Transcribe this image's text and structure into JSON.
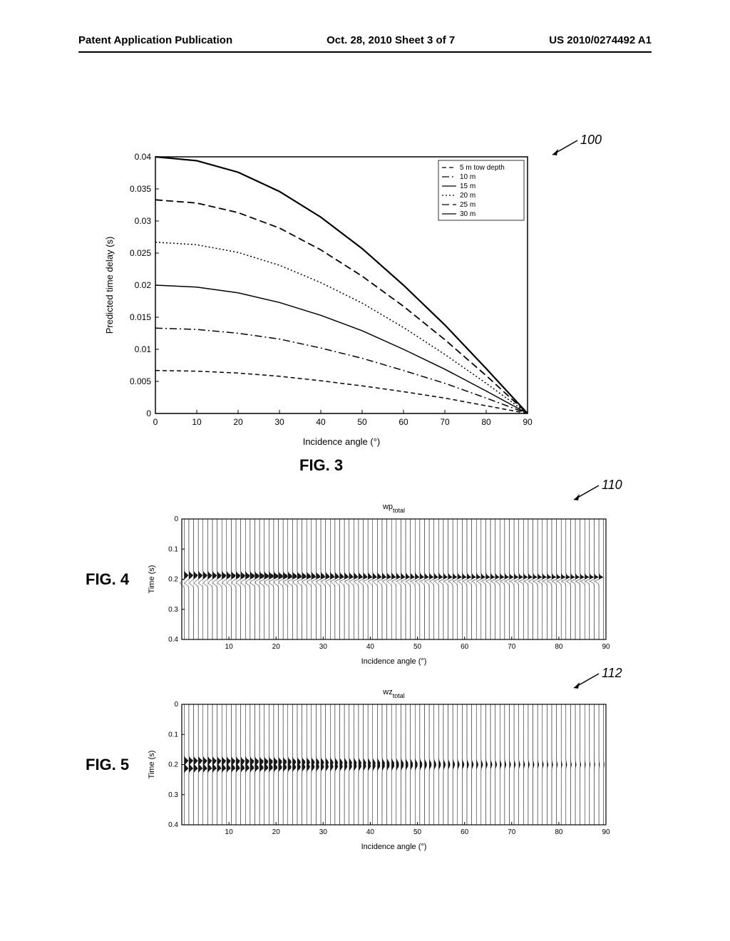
{
  "header": {
    "left": "Patent Application Publication",
    "center": "Oct. 28, 2010  Sheet 3 of 7",
    "right": "US 2010/0274492 A1"
  },
  "fig3": {
    "type": "line",
    "label": "FIG. 3",
    "callout": "100",
    "xlabel": "Incidence angle (°)",
    "ylabel": "Predicted time delay (s)",
    "xlim": [
      0,
      90
    ],
    "ylim": [
      0,
      0.04
    ],
    "xticks": [
      0,
      10,
      20,
      30,
      40,
      50,
      60,
      70,
      80,
      90
    ],
    "yticks": [
      0,
      0.005,
      0.01,
      0.015,
      0.02,
      0.025,
      0.03,
      0.035,
      0.04
    ],
    "legend": [
      {
        "label": "5 m tow depth",
        "dash": "6,4"
      },
      {
        "label": "10 m",
        "dash": "10,4,2,4"
      },
      {
        "label": "15 m",
        "dash": ""
      },
      {
        "label": "20 m",
        "dash": "2,3"
      },
      {
        "label": "25 m",
        "dash": "10,5"
      },
      {
        "label": "30 m",
        "dash": ""
      }
    ],
    "series": [
      {
        "name": "5m",
        "dash": "6,4",
        "width": 1.5,
        "pts": [
          [
            0,
            0.0067
          ],
          [
            10,
            0.0066
          ],
          [
            20,
            0.0063
          ],
          [
            30,
            0.0058
          ],
          [
            40,
            0.0051
          ],
          [
            50,
            0.0043
          ],
          [
            60,
            0.0034
          ],
          [
            70,
            0.0024
          ],
          [
            80,
            0.0012
          ],
          [
            90,
            0
          ]
        ]
      },
      {
        "name": "10m",
        "dash": "10,4,2,4",
        "width": 1.5,
        "pts": [
          [
            0,
            0.0133
          ],
          [
            10,
            0.0131
          ],
          [
            20,
            0.0125
          ],
          [
            30,
            0.0116
          ],
          [
            40,
            0.0102
          ],
          [
            50,
            0.0086
          ],
          [
            60,
            0.0067
          ],
          [
            70,
            0.0047
          ],
          [
            80,
            0.0024
          ],
          [
            90,
            0
          ]
        ]
      },
      {
        "name": "15m",
        "dash": "",
        "width": 1.5,
        "pts": [
          [
            0,
            0.02
          ],
          [
            10,
            0.0197
          ],
          [
            20,
            0.0188
          ],
          [
            30,
            0.0173
          ],
          [
            40,
            0.0153
          ],
          [
            50,
            0.0129
          ],
          [
            60,
            0.01
          ],
          [
            70,
            0.0069
          ],
          [
            80,
            0.0035
          ],
          [
            90,
            0
          ]
        ]
      },
      {
        "name": "20m",
        "dash": "2,3",
        "width": 1.5,
        "pts": [
          [
            0,
            0.0267
          ],
          [
            10,
            0.0263
          ],
          [
            20,
            0.0251
          ],
          [
            30,
            0.0231
          ],
          [
            40,
            0.0204
          ],
          [
            50,
            0.0172
          ],
          [
            60,
            0.0134
          ],
          [
            70,
            0.0092
          ],
          [
            80,
            0.0047
          ],
          [
            90,
            0
          ]
        ]
      },
      {
        "name": "25m",
        "dash": "10,5",
        "width": 1.8,
        "pts": [
          [
            0,
            0.0333
          ],
          [
            10,
            0.0328
          ],
          [
            20,
            0.0313
          ],
          [
            30,
            0.0289
          ],
          [
            40,
            0.0255
          ],
          [
            50,
            0.0214
          ],
          [
            60,
            0.0167
          ],
          [
            70,
            0.0115
          ],
          [
            80,
            0.0059
          ],
          [
            90,
            0
          ]
        ]
      },
      {
        "name": "30m",
        "dash": "",
        "width": 2.2,
        "pts": [
          [
            0,
            0.04
          ],
          [
            10,
            0.0394
          ],
          [
            20,
            0.0376
          ],
          [
            30,
            0.0346
          ],
          [
            40,
            0.0306
          ],
          [
            50,
            0.0257
          ],
          [
            60,
            0.02
          ],
          [
            70,
            0.0138
          ],
          [
            80,
            0.007
          ],
          [
            90,
            0
          ]
        ]
      }
    ],
    "plot_bg": "#ffffff",
    "axis_color": "#000000",
    "line_color": "#000000",
    "tick_fontsize": 12,
    "label_fontsize": 13,
    "legend_fontsize": 10
  },
  "fig4": {
    "type": "seismic-wiggle",
    "label": "FIG. 4",
    "callout": "110",
    "title": "wp_total",
    "xlabel": "Incidence angle (°)",
    "ylabel": "Time (s)",
    "xlim": [
      0,
      90
    ],
    "ylim": [
      0,
      0.4
    ],
    "xticks": [
      10,
      20,
      30,
      40,
      50,
      60,
      70,
      80,
      90
    ],
    "yticks": [
      0,
      0.1,
      0.2,
      0.3,
      0.4
    ],
    "event_time": 0.2,
    "ghost_offset_start": 0.025,
    "ghost_offset_end": 0.0,
    "trace_spacing": 1,
    "trace_count": 90,
    "tick_fontsize": 10,
    "label_fontsize": 11,
    "title_fontsize": 11,
    "trace_color": "#000000",
    "axis_color": "#000000"
  },
  "fig5": {
    "type": "seismic-wiggle",
    "label": "FIG. 5",
    "callout": "112",
    "title": "wz_total",
    "xlabel": "Incidence angle (°)",
    "ylabel": "Time (s)",
    "xlim": [
      0,
      90
    ],
    "ylim": [
      0,
      0.4
    ],
    "xticks": [
      10,
      20,
      30,
      40,
      50,
      60,
      70,
      80,
      90
    ],
    "yticks": [
      0,
      0.1,
      0.2,
      0.3,
      0.4
    ],
    "event_time": 0.2,
    "ghost_offset_start": 0.025,
    "ghost_offset_end": 0.0,
    "amplitude_taper_start": 1.0,
    "amplitude_taper_end": 0.15,
    "trace_spacing": 1,
    "trace_count": 90,
    "tick_fontsize": 10,
    "label_fontsize": 11,
    "title_fontsize": 11,
    "trace_color": "#000000",
    "axis_color": "#000000"
  }
}
